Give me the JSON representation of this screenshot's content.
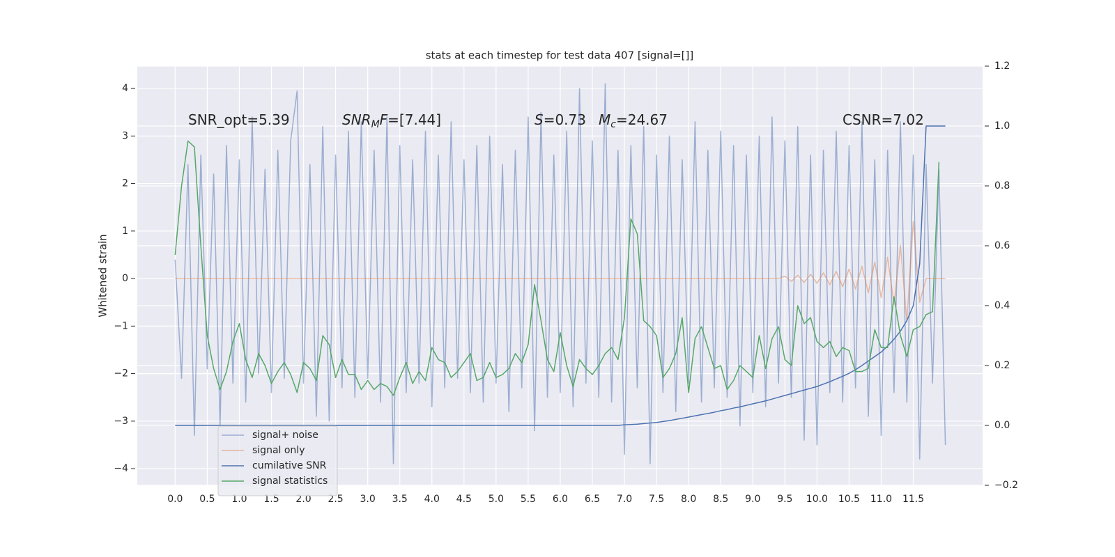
{
  "chart_data": {
    "type": "line",
    "title": "stats at each timestep for test data 407 [signal=[]]",
    "ylabel": "Whitened strain",
    "x": [
      0,
      0.1,
      0.2,
      0.3,
      0.4,
      0.5,
      0.6,
      0.7,
      0.8,
      0.9,
      1,
      1.1,
      1.2,
      1.3,
      1.4,
      1.5,
      1.6,
      1.7,
      1.8,
      1.9,
      2,
      2.1,
      2.2,
      2.3,
      2.4,
      2.5,
      2.6,
      2.7,
      2.8,
      2.9,
      3,
      3.1,
      3.2,
      3.3,
      3.4,
      3.5,
      3.6,
      3.7,
      3.8,
      3.9,
      4,
      4.1,
      4.2,
      4.3,
      4.4,
      4.5,
      4.6,
      4.7,
      4.8,
      4.9,
      5,
      5.1,
      5.2,
      5.3,
      5.4,
      5.5,
      5.6,
      5.7,
      5.8,
      5.9,
      6,
      6.1,
      6.2,
      6.3,
      6.4,
      6.5,
      6.6,
      6.7,
      6.8,
      6.9,
      7,
      7.1,
      7.2,
      7.3,
      7.4,
      7.5,
      7.6,
      7.7,
      7.8,
      7.9,
      8,
      8.1,
      8.2,
      8.3,
      8.4,
      8.5,
      8.6,
      8.7,
      8.8,
      8.9,
      9,
      9.1,
      9.2,
      9.3,
      9.4,
      9.5,
      9.6,
      9.7,
      9.8,
      9.9,
      10,
      10.1,
      10.2,
      10.3,
      10.4,
      10.5,
      10.6,
      10.7,
      10.8,
      10.9,
      11,
      11.1,
      11.2,
      11.3,
      11.4,
      11.5,
      11.6,
      11.7,
      11.8,
      11.9,
      12
    ],
    "series": [
      {
        "name": "signal+ noise",
        "color": "#4c72b0",
        "alpha": 0.5,
        "values": [
          0.4,
          -2.1,
          2.4,
          -3.3,
          2.6,
          -1.9,
          2.2,
          -3.1,
          2.8,
          -2.2,
          2.5,
          -2.6,
          3.4,
          -2.0,
          2.3,
          -2.4,
          2.7,
          -2.1,
          2.9,
          3.95,
          -2.2,
          2.4,
          -2.9,
          3.2,
          -3.0,
          2.6,
          -2.3,
          3.1,
          -2.5,
          3.3,
          -2.1,
          2.7,
          -2.6,
          3.4,
          -3.9,
          2.8,
          -2.4,
          2.5,
          -2.2,
          3.1,
          -2.7,
          2.6,
          -2.3,
          3.3,
          -2.1,
          2.5,
          -2.4,
          2.8,
          -2.6,
          3.0,
          -2.2,
          2.4,
          -2.8,
          2.7,
          -2.3,
          3.4,
          -3.2,
          3.5,
          -2.5,
          2.6,
          -2.4,
          3.1,
          -2.7,
          4.0,
          -2.2,
          2.9,
          -2.5,
          4.1,
          -2.6,
          2.7,
          -3.7,
          2.8,
          -2.3,
          3.2,
          -3.9,
          2.6,
          -2.4,
          3.0,
          -2.8,
          2.5,
          -2.2,
          3.3,
          -2.6,
          2.7,
          -2.3,
          3.1,
          -2.5,
          2.8,
          -3.1,
          2.6,
          -2.4,
          3.0,
          -2.7,
          3.4,
          -2.2,
          2.9,
          -2.5,
          3.2,
          -3.4,
          2.6,
          -3.5,
          2.7,
          -2.4,
          3.1,
          -2.6,
          2.8,
          -2.3,
          3.3,
          -2.9,
          2.5,
          -3.3,
          2.7,
          -2.4,
          3.3,
          -2.6,
          2.6,
          -3.8,
          2.4,
          -2.2,
          2.3,
          -3.5
        ]
      },
      {
        "name": "signal only",
        "color": "#dd8452",
        "alpha": 0.5,
        "values": [
          0,
          0,
          0,
          0,
          0,
          0,
          0,
          0,
          0,
          0,
          0,
          0,
          0,
          0,
          0,
          0,
          0,
          0,
          0,
          0,
          0,
          0,
          0,
          0,
          0,
          0,
          0,
          0,
          0,
          0,
          0,
          0,
          0,
          0,
          0,
          0,
          0,
          0,
          0,
          0,
          0,
          0,
          0,
          0,
          0,
          0,
          0,
          0,
          0,
          0,
          0,
          0,
          0,
          0,
          0,
          0,
          0,
          0,
          0,
          0,
          0,
          0,
          0,
          0,
          0,
          0,
          0,
          0,
          0,
          0,
          0,
          0,
          0,
          0,
          0,
          0,
          0,
          0,
          0,
          0,
          0,
          0,
          0,
          0,
          0,
          0,
          0,
          0,
          0,
          0,
          0,
          0,
          0,
          0,
          0,
          0.05,
          -0.06,
          0.07,
          -0.08,
          0.09,
          -0.1,
          0.12,
          -0.13,
          0.15,
          -0.17,
          0.2,
          -0.22,
          0.26,
          -0.3,
          0.35,
          -0.4,
          0.45,
          -0.55,
          0.7,
          -0.9,
          1.2,
          -0.5,
          0,
          0,
          0,
          0
        ]
      },
      {
        "name": "cumilative SNR",
        "color": "#4c72b0",
        "alpha": 1,
        "axis": "y2",
        "values": [
          0,
          0,
          0,
          0,
          0,
          0,
          0,
          0,
          0,
          0,
          0,
          0,
          0,
          0,
          0,
          0,
          0,
          0,
          0,
          0,
          0,
          0,
          0,
          0,
          0,
          0,
          0,
          0,
          0,
          0,
          0,
          0,
          0,
          0,
          0,
          0,
          0,
          0,
          0,
          0,
          0,
          0,
          0,
          0,
          0,
          0,
          0,
          0,
          0,
          0,
          0,
          0,
          0,
          0,
          0,
          0,
          0,
          0,
          0,
          0,
          0,
          0,
          0,
          0,
          0,
          0,
          0,
          0,
          0,
          0,
          0.002,
          0.003,
          0.004,
          0.006,
          0.008,
          0.01,
          0.013,
          0.016,
          0.02,
          0.024,
          0.028,
          0.032,
          0.036,
          0.04,
          0.044,
          0.049,
          0.053,
          0.058,
          0.062,
          0.067,
          0.072,
          0.077,
          0.082,
          0.088,
          0.094,
          0.1,
          0.106,
          0.112,
          0.118,
          0.124,
          0.13,
          0.138,
          0.146,
          0.155,
          0.164,
          0.174,
          0.186,
          0.2,
          0.215,
          0.23,
          0.245,
          0.265,
          0.288,
          0.315,
          0.35,
          0.4,
          0.54,
          1.0,
          1.0,
          1.0,
          1.0
        ]
      },
      {
        "name": "signal statistics",
        "color": "#55a868",
        "alpha": 1,
        "axis": "y2",
        "values": [
          0.57,
          0.8,
          0.95,
          0.93,
          0.6,
          0.3,
          0.19,
          0.12,
          0.18,
          0.28,
          0.34,
          0.22,
          0.16,
          0.24,
          0.2,
          0.14,
          0.18,
          0.21,
          0.17,
          0.11,
          0.21,
          0.19,
          0.15,
          0.3,
          0.27,
          0.16,
          0.22,
          0.17,
          0.17,
          0.12,
          0.15,
          0.12,
          0.14,
          0.13,
          0.1,
          0.16,
          0.21,
          0.14,
          0.18,
          0.15,
          0.26,
          0.22,
          0.21,
          0.16,
          0.18,
          0.21,
          0.24,
          0.15,
          0.16,
          0.21,
          0.16,
          0.17,
          0.19,
          0.24,
          0.21,
          0.27,
          0.47,
          0.35,
          0.22,
          0.18,
          0.31,
          0.2,
          0.13,
          0.22,
          0.19,
          0.17,
          0.2,
          0.24,
          0.26,
          0.22,
          0.36,
          0.69,
          0.64,
          0.35,
          0.33,
          0.3,
          0.16,
          0.19,
          0.24,
          0.36,
          0.11,
          0.29,
          0.33,
          0.26,
          0.19,
          0.2,
          0.12,
          0.15,
          0.2,
          0.18,
          0.16,
          0.3,
          0.19,
          0.29,
          0.33,
          0.22,
          0.2,
          0.4,
          0.34,
          0.36,
          0.28,
          0.26,
          0.28,
          0.23,
          0.26,
          0.25,
          0.18,
          0.18,
          0.19,
          0.32,
          0.26,
          0.26,
          0.43,
          0.3,
          0.23,
          0.32,
          0.33,
          0.37,
          0.38,
          0.88,
          null
        ]
      }
    ],
    "xlim": [
      -0.59,
      12.58
    ],
    "xticks": [
      {
        "value": 0,
        "label": "0.0"
      },
      0.5,
      {
        "value": 1,
        "label": "1.0"
      },
      1.5,
      {
        "value": 2,
        "label": "2.0"
      },
      2.5,
      {
        "value": 3,
        "label": "3.0"
      },
      3.5,
      {
        "value": 4,
        "label": "4.0"
      },
      4.5,
      {
        "value": 5,
        "label": "5.0"
      },
      5.5,
      {
        "value": 6,
        "label": "6.0"
      },
      6.5,
      {
        "value": 7,
        "label": "7.0"
      },
      7.5,
      {
        "value": 8,
        "label": "8.0"
      },
      8.5,
      {
        "value": 9,
        "label": "9.0"
      },
      9.5,
      {
        "value": 10,
        "label": "10.0"
      },
      10.5,
      {
        "value": 11,
        "label": "11.0"
      },
      11.5
    ],
    "ylim": [
      -4.35,
      4.47
    ],
    "yticks": [
      {
        "value": -4,
        "label": "−4"
      },
      {
        "value": -3,
        "label": "−3"
      },
      {
        "value": -2,
        "label": "−2"
      },
      {
        "value": -1,
        "label": "−1"
      },
      0,
      1,
      2,
      3,
      4
    ],
    "y2lim": [
      -0.2,
      1.2
    ],
    "y2ticks": [
      {
        "value": -0.2,
        "label": "−0.2"
      },
      {
        "value": 0,
        "label": "0.0"
      },
      0.2,
      0.4,
      0.6,
      0.8,
      {
        "value": 1,
        "label": "1.0"
      },
      1.2
    ],
    "grid": true,
    "legend": "lower left",
    "annotations": [
      [
        {
          "text": "SNR_opt=5.39"
        }
      ],
      [
        {
          "text": "SNR",
          "style": "italic"
        },
        {
          "text": "M",
          "style": "sub"
        },
        {
          "text": "F",
          "style": "italic"
        },
        {
          "text": "=[7.44]"
        }
      ],
      [
        {
          "text": "S",
          "style": "italic"
        },
        {
          "text": "=0.73"
        }
      ],
      [
        {
          "text": "M",
          "style": "italic"
        },
        {
          "text": "c",
          "style": "sub"
        },
        {
          "text": "=24.67"
        }
      ],
      [
        {
          "text": "CSNR=7.02"
        }
      ]
    ]
  }
}
